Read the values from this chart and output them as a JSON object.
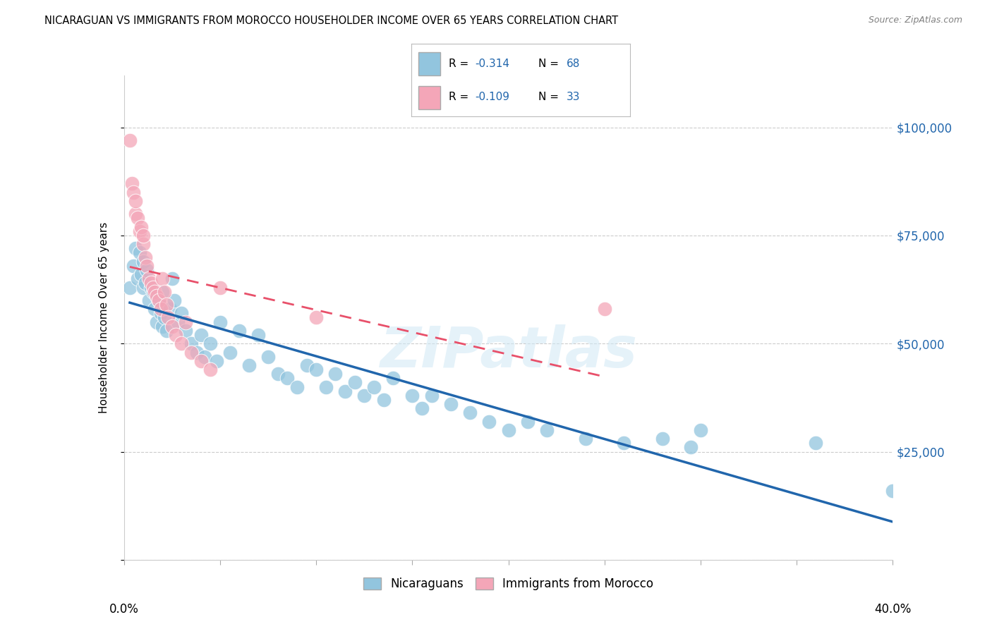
{
  "title": "NICARAGUAN VS IMMIGRANTS FROM MOROCCO HOUSEHOLDER INCOME OVER 65 YEARS CORRELATION CHART",
  "source": "Source: ZipAtlas.com",
  "ylabel": "Householder Income Over 65 years",
  "legend_label1": "Nicaraguans",
  "legend_label2": "Immigrants from Morocco",
  "R1": "-0.314",
  "N1": "68",
  "R2": "-0.109",
  "N2": "33",
  "color_blue": "#92c5de",
  "color_pink": "#f4a6b8",
  "color_blue_line": "#2166ac",
  "color_pink_line": "#e8506a",
  "background": "#ffffff",
  "grid_color": "#cccccc",
  "yticks": [
    0,
    25000,
    50000,
    75000,
    100000
  ],
  "ytick_labels": [
    "",
    "$25,000",
    "$50,000",
    "$75,000",
    "$100,000"
  ],
  "xlim": [
    0.0,
    0.4
  ],
  "ylim": [
    0,
    112000
  ],
  "blue_scatter_x": [
    0.003,
    0.005,
    0.006,
    0.007,
    0.008,
    0.009,
    0.01,
    0.01,
    0.011,
    0.012,
    0.013,
    0.014,
    0.015,
    0.016,
    0.017,
    0.018,
    0.019,
    0.02,
    0.02,
    0.021,
    0.022,
    0.024,
    0.025,
    0.026,
    0.028,
    0.03,
    0.032,
    0.035,
    0.038,
    0.04,
    0.042,
    0.045,
    0.048,
    0.05,
    0.055,
    0.06,
    0.065,
    0.07,
    0.075,
    0.08,
    0.085,
    0.09,
    0.095,
    0.1,
    0.105,
    0.11,
    0.115,
    0.12,
    0.125,
    0.13,
    0.135,
    0.14,
    0.15,
    0.155,
    0.16,
    0.17,
    0.18,
    0.19,
    0.2,
    0.21,
    0.22,
    0.24,
    0.26,
    0.28,
    0.295,
    0.3,
    0.36,
    0.4
  ],
  "blue_scatter_y": [
    63000,
    68000,
    72000,
    65000,
    71000,
    66000,
    63000,
    69000,
    64000,
    67000,
    60000,
    63000,
    62000,
    58000,
    55000,
    60000,
    57000,
    54000,
    62000,
    56000,
    53000,
    58000,
    65000,
    60000,
    55000,
    57000,
    53000,
    50000,
    48000,
    52000,
    47000,
    50000,
    46000,
    55000,
    48000,
    53000,
    45000,
    52000,
    47000,
    43000,
    42000,
    40000,
    45000,
    44000,
    40000,
    43000,
    39000,
    41000,
    38000,
    40000,
    37000,
    42000,
    38000,
    35000,
    38000,
    36000,
    34000,
    32000,
    30000,
    32000,
    30000,
    28000,
    27000,
    28000,
    26000,
    30000,
    27000,
    16000
  ],
  "pink_scatter_x": [
    0.003,
    0.004,
    0.005,
    0.006,
    0.006,
    0.007,
    0.008,
    0.009,
    0.01,
    0.01,
    0.011,
    0.012,
    0.013,
    0.014,
    0.015,
    0.016,
    0.017,
    0.018,
    0.019,
    0.02,
    0.021,
    0.022,
    0.023,
    0.025,
    0.027,
    0.03,
    0.032,
    0.035,
    0.04,
    0.045,
    0.05,
    0.1,
    0.25
  ],
  "pink_scatter_y": [
    97000,
    87000,
    85000,
    80000,
    83000,
    79000,
    76000,
    77000,
    73000,
    75000,
    70000,
    68000,
    65000,
    64000,
    63000,
    62000,
    61000,
    60000,
    58000,
    65000,
    62000,
    59000,
    56000,
    54000,
    52000,
    50000,
    55000,
    48000,
    46000,
    44000,
    63000,
    56000,
    58000
  ],
  "blue_line_x": [
    0.003,
    0.4
  ],
  "blue_line_y": [
    65000,
    15000
  ],
  "pink_line_x": [
    0.003,
    0.25
  ],
  "pink_line_y": [
    63000,
    48000
  ]
}
